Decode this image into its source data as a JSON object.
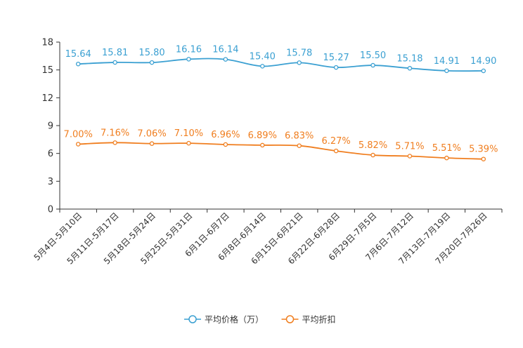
{
  "chart_data": {
    "type": "line",
    "categories": [
      "5月4日-5月10日",
      "5月11日-5月17日",
      "5月18日-5月24日",
      "5月25日-5月31日",
      "6月1日-6月7日",
      "6月8日-6月14日",
      "6月15日-6月21日",
      "6月22日-6月28日",
      "6月29日-7月5日",
      "7月6日-7月12日",
      "7月13日-7月19日",
      "7月20日-7月26日"
    ],
    "ylim": [
      0,
      18
    ],
    "yticks": [
      0,
      3,
      6,
      9,
      12,
      15,
      18
    ],
    "grid": false,
    "legend_position": "bottom-center",
    "series": [
      {
        "name": "平均价格（万）",
        "color": "#3ba0d2",
        "values": [
          15.64,
          15.81,
          15.8,
          16.16,
          16.14,
          15.4,
          15.78,
          15.27,
          15.5,
          15.18,
          14.91,
          14.9
        ],
        "labels": [
          "15.64",
          "15.81",
          "15.80",
          "16.16",
          "16.14",
          "15.40",
          "15.78",
          "15.27",
          "15.50",
          "15.18",
          "14.91",
          "14.90"
        ]
      },
      {
        "name": "平均折扣",
        "color": "#f07e1f",
        "values": [
          7.0,
          7.16,
          7.06,
          7.1,
          6.96,
          6.89,
          6.83,
          6.27,
          5.82,
          5.71,
          5.51,
          5.39
        ],
        "labels": [
          "7.00%",
          "7.16%",
          "7.06%",
          "7.10%",
          "6.96%",
          "6.89%",
          "6.83%",
          "6.27%",
          "5.82%",
          "5.71%",
          "5.51%",
          "5.39%"
        ]
      }
    ]
  }
}
